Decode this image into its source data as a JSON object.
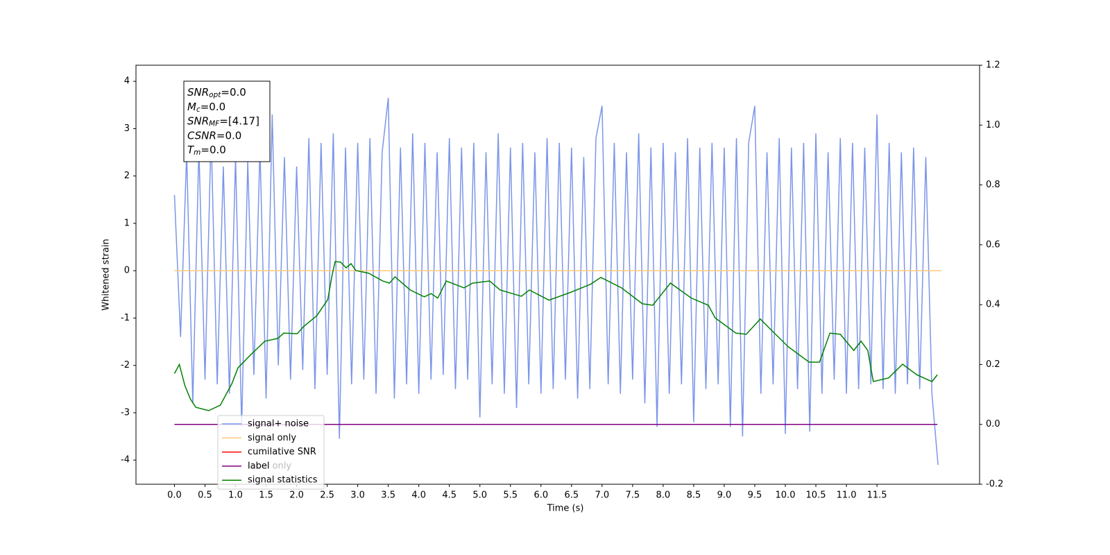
{
  "chart_data": {
    "type": "line",
    "xlabel": "Time (s)",
    "ylabel": "Whitened strain",
    "xlim": [
      -0.63,
      13.18
    ],
    "ylim": [
      -4.51,
      4.34
    ],
    "y2lim": [
      -0.2,
      1.2
    ],
    "xticks": [
      {
        "value": 0,
        "label": "0.0"
      },
      {
        "value": 0.5,
        "label": "0.5"
      },
      {
        "value": 1,
        "label": "1.0"
      },
      {
        "value": 1.5,
        "label": "1.5"
      },
      {
        "value": 2,
        "label": "2.0"
      },
      {
        "value": 2.5,
        "label": "2.5"
      },
      {
        "value": 3,
        "label": "3.0"
      },
      {
        "value": 3.5,
        "label": "3.5"
      },
      {
        "value": 4,
        "label": "4.0"
      },
      {
        "value": 4.5,
        "label": "4.5"
      },
      {
        "value": 5,
        "label": "5.0"
      },
      {
        "value": 5.5,
        "label": "5.5"
      },
      {
        "value": 6,
        "label": "6.0"
      },
      {
        "value": 6.5,
        "label": "6.5"
      },
      {
        "value": 7,
        "label": "7.0"
      },
      {
        "value": 7.5,
        "label": "7.5"
      },
      {
        "value": 8,
        "label": "8.0"
      },
      {
        "value": 8.5,
        "label": "8.5"
      },
      {
        "value": 9,
        "label": "9.0"
      },
      {
        "value": 9.5,
        "label": "9.5"
      },
      {
        "value": 10,
        "label": "10.0"
      },
      {
        "value": 10.5,
        "label": "10.5"
      },
      {
        "value": 11,
        "label": "11.0"
      },
      {
        "value": 11.5,
        "label": "11.5"
      }
    ],
    "yticks": [
      -4,
      -3,
      -2,
      -1,
      0,
      1,
      2,
      3,
      4
    ],
    "y2ticks": [
      -0.2,
      {
        "value": 0,
        "label": "0.0"
      },
      0.2,
      0.4,
      0.6,
      0.8,
      {
        "value": 1,
        "label": "1.0"
      },
      1.2
    ],
    "annotations": [
      {
        "main": "SNR",
        "sub": "opt",
        "value": "=0.0"
      },
      {
        "main": "M",
        "sub": "c",
        "value": "=0.0"
      },
      {
        "main": "SNR",
        "sub": "MF",
        "value": "=[4.17]"
      },
      {
        "main": "CSNR",
        "sub": "",
        "value": "=0.0"
      },
      {
        "main": "T",
        "sub": "m",
        "value": "=0.0"
      }
    ],
    "ghost_legend_text": "label only",
    "series": [
      {
        "name": "signal+ noise",
        "color": "#7b95e8",
        "axis": "y",
        "x": [
          0,
          0.1,
          0.2,
          0.3,
          0.4,
          0.5,
          0.6,
          0.7,
          0.8,
          0.9,
          1,
          1.1,
          1.2,
          1.3,
          1.4,
          1.5,
          1.6,
          1.7,
          1.8,
          1.9,
          2,
          2.1,
          2.2,
          2.3,
          2.4,
          2.5,
          2.6,
          2.7,
          2.8,
          2.9,
          3,
          3.1,
          3.2,
          3.3,
          3.4,
          3.5,
          3.6,
          3.7,
          3.8,
          3.9,
          4,
          4.1,
          4.2,
          4.3,
          4.4,
          4.5,
          4.6,
          4.7,
          4.8,
          4.9,
          5,
          5.1,
          5.2,
          5.3,
          5.4,
          5.5,
          5.6,
          5.7,
          5.8,
          5.9,
          6,
          6.1,
          6.2,
          6.3,
          6.4,
          6.5,
          6.6,
          6.7,
          6.8,
          6.9,
          7,
          7.1,
          7.2,
          7.3,
          7.4,
          7.5,
          7.6,
          7.7,
          7.8,
          7.9,
          8,
          8.1,
          8.2,
          8.3,
          8.4,
          8.5,
          8.6,
          8.7,
          8.8,
          8.9,
          9,
          9.1,
          9.2,
          9.3,
          9.4,
          9.5,
          9.6,
          9.7,
          9.8,
          9.9,
          10,
          10.1,
          10.2,
          10.3,
          10.4,
          10.5,
          10.6,
          10.7,
          10.8,
          10.9,
          11,
          11.1,
          11.2,
          11.3,
          11.4,
          11.5,
          11.6,
          11.7,
          11.8,
          11.9,
          12,
          12.1,
          12.2,
          12.3,
          12.4,
          12.5
        ],
        "values": [
          1.6,
          -1.4,
          2.5,
          -2.8,
          2.6,
          -2.3,
          2.9,
          -2.4,
          2.2,
          -2.6,
          2.4,
          -3.3,
          2.3,
          -2.2,
          2.6,
          -2.7,
          3.3,
          -2.0,
          2.4,
          -2.3,
          2.2,
          -2.1,
          2.8,
          -2.5,
          2.7,
          -2.2,
          2.9,
          -3.55,
          2.6,
          -2.4,
          2.7,
          -2.3,
          2.8,
          -2.6,
          2.5,
          3.65,
          -2.7,
          2.6,
          -2.4,
          2.9,
          -2.6,
          2.7,
          -2.3,
          2.5,
          -2.2,
          2.8,
          -2.5,
          2.6,
          -2.3,
          2.7,
          -3.1,
          2.5,
          -2.4,
          2.9,
          -2.6,
          2.6,
          -2.9,
          2.7,
          -2.4,
          2.5,
          -2.6,
          2.8,
          -2.5,
          2.7,
          -2.3,
          2.6,
          -2.7,
          2.4,
          -2.5,
          2.8,
          3.48,
          -2.4,
          2.7,
          -2.6,
          2.5,
          -2.3,
          2.9,
          -2.8,
          2.6,
          -3.3,
          2.7,
          -2.6,
          2.5,
          -2.4,
          2.8,
          -3.2,
          2.6,
          -2.5,
          2.7,
          -2.4,
          2.6,
          -3.3,
          2.8,
          -3.5,
          2.7,
          3.48,
          -2.6,
          2.5,
          -2.4,
          2.8,
          -3.45,
          2.6,
          -2.5,
          2.7,
          -3.4,
          2.9,
          -2.6,
          2.5,
          -2.3,
          2.8,
          -2.6,
          2.7,
          -2.5,
          2.6,
          -2.4,
          3.3,
          -2.5,
          2.7,
          -2.6,
          2.5,
          -2.4,
          2.6,
          -2.5,
          2.4,
          -2.6,
          -4.1
        ]
      },
      {
        "name": "signal only",
        "color": "#ffc878",
        "axis": "y",
        "x": [
          0,
          12.55
        ],
        "values": [
          0,
          0
        ]
      },
      {
        "name": "cumilative SNR",
        "color": "#ff0000",
        "axis": "y2",
        "x": [],
        "values": []
      },
      {
        "name": "label",
        "color": "#800080",
        "axis": "y2",
        "x": [
          0,
          12.49
        ],
        "values": [
          0,
          0
        ]
      },
      {
        "name": "signal statistics",
        "color": "#008000",
        "axis": "y2",
        "x": [
          0,
          0.08,
          0.17,
          0.26,
          0.35,
          0.56,
          0.75,
          0.94,
          1.04,
          1.25,
          1.48,
          1.69,
          1.79,
          2.01,
          2.11,
          2.33,
          2.51,
          2.58,
          2.63,
          2.72,
          2.81,
          2.89,
          2.97,
          3.18,
          3.41,
          3.52,
          3.61,
          3.86,
          4.09,
          4.2,
          4.31,
          4.45,
          4.74,
          4.88,
          5.16,
          5.33,
          5.68,
          5.81,
          6.13,
          6.47,
          6.81,
          6.98,
          7.32,
          7.66,
          7.83,
          8.12,
          8.46,
          8.74,
          8.85,
          9.19,
          9.36,
          9.59,
          9.82,
          10.05,
          10.39,
          10.56,
          10.73,
          10.9,
          11.12,
          11.24,
          11.35,
          11.44,
          11.69,
          11.92,
          12.15,
          12.4,
          12.49
        ],
        "values": [
          0.17,
          0.2,
          0.13,
          0.085,
          0.057,
          0.046,
          0.064,
          0.136,
          0.189,
          0.233,
          0.278,
          0.287,
          0.305,
          0.303,
          0.326,
          0.363,
          0.417,
          0.498,
          0.544,
          0.542,
          0.523,
          0.537,
          0.514,
          0.505,
          0.479,
          0.472,
          0.493,
          0.449,
          0.426,
          0.437,
          0.422,
          0.479,
          0.456,
          0.472,
          0.479,
          0.449,
          0.428,
          0.449,
          0.415,
          0.44,
          0.468,
          0.491,
          0.456,
          0.403,
          0.398,
          0.472,
          0.422,
          0.398,
          0.356,
          0.305,
          0.301,
          0.352,
          0.305,
          0.259,
          0.208,
          0.208,
          0.305,
          0.301,
          0.247,
          0.278,
          0.247,
          0.143,
          0.155,
          0.201,
          0.166,
          0.143,
          0.166
        ]
      }
    ]
  }
}
